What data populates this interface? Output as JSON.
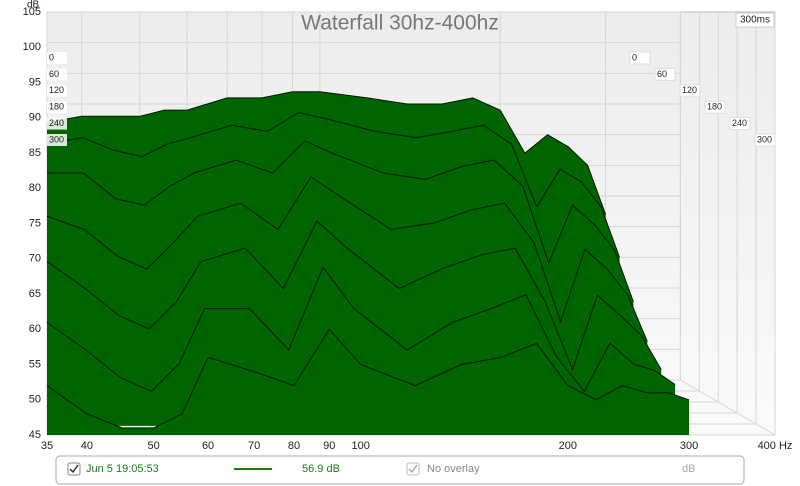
{
  "chart_data": {
    "type": "waterfall",
    "title": "Waterfall 30hz-400hz",
    "ylabel": "dB",
    "depth_label": "300ms",
    "x": [
      35,
      40,
      45,
      50,
      55,
      60,
      70,
      80,
      90,
      100,
      120,
      140,
      160,
      180,
      200,
      220,
      240,
      260,
      280,
      300
    ],
    "xlim": [
      35,
      400
    ],
    "xticks": [
      35,
      40,
      50,
      60,
      70,
      80,
      90,
      100,
      200,
      300,
      {
        "value": 400,
        "label": "400 Hz"
      }
    ],
    "xscale": "log",
    "ylim": [
      45,
      105
    ],
    "yticks": [
      45,
      50,
      55,
      60,
      65,
      70,
      75,
      80,
      85,
      90,
      95,
      100,
      105
    ],
    "zlim": [
      0,
      300
    ],
    "zticks": [
      0,
      60,
      120,
      180,
      240,
      300
    ],
    "color": "#006400",
    "grid": true,
    "slices": [
      {
        "time": 0,
        "values": [
          87,
          88,
          88,
          88,
          89,
          89,
          91,
          91,
          92,
          92,
          91,
          90,
          90,
          91,
          89,
          82,
          85,
          83,
          80,
          72
        ]
      },
      {
        "time": 50,
        "values": [
          84,
          85,
          83,
          82,
          84,
          85,
          87,
          86,
          89,
          88,
          86,
          85,
          86,
          87,
          84,
          74,
          80,
          78,
          74,
          66
        ]
      },
      {
        "time": 100,
        "values": [
          80,
          80,
          76,
          75,
          78,
          80,
          82,
          80,
          85,
          83,
          80,
          79,
          81,
          82,
          78,
          66,
          75,
          72,
          68,
          60
        ]
      },
      {
        "time": 150,
        "values": [
          74,
          72,
          68,
          66,
          70,
          74,
          76,
          72,
          80,
          77,
          72,
          73,
          75,
          76,
          70,
          58,
          69,
          66,
          62,
          55
        ]
      },
      {
        "time": 200,
        "values": [
          68,
          64,
          60,
          58,
          62,
          68,
          70,
          64,
          74,
          70,
          64,
          67,
          69,
          70,
          62,
          52,
          63,
          60,
          57,
          52
        ]
      },
      {
        "time": 250,
        "values": [
          60,
          56,
          52,
          50,
          54,
          62,
          62,
          56,
          68,
          62,
          56,
          60,
          62,
          64,
          55,
          50,
          57,
          54,
          53,
          51
        ]
      },
      {
        "time": 300,
        "values": [
          52,
          48,
          46,
          46,
          48,
          56,
          54,
          52,
          60,
          55,
          52,
          55,
          56,
          58,
          52,
          50,
          52,
          51,
          51,
          50
        ]
      }
    ]
  },
  "status_bar": {
    "measurement": "Jun 5 19:05:53",
    "level": "56.9 dB",
    "overlay": "No overlay",
    "unit": "dB"
  }
}
